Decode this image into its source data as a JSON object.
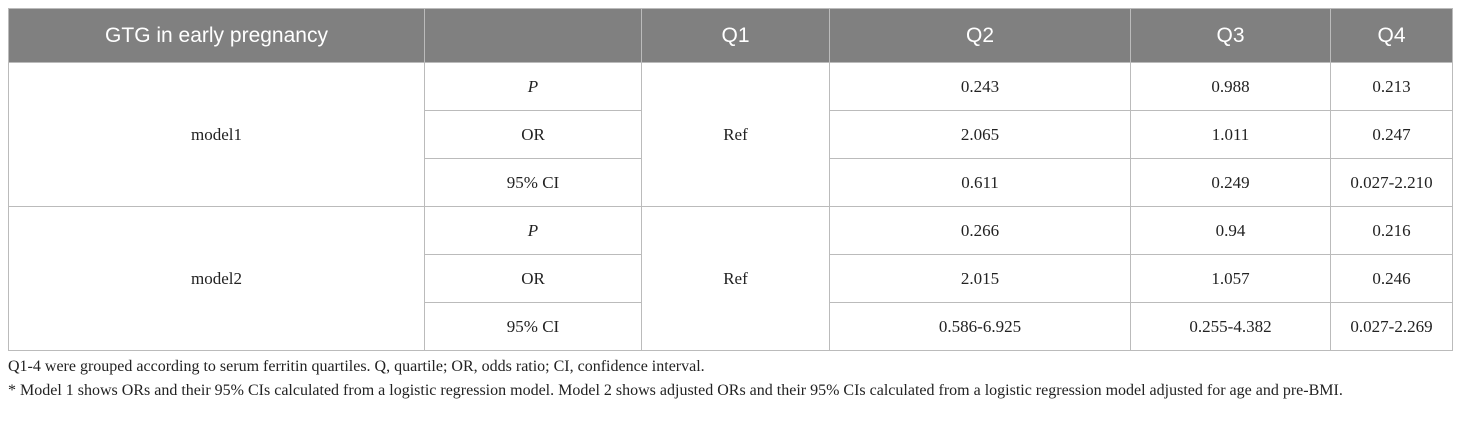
{
  "table": {
    "header": [
      "GTG in early pregnancy",
      "Q1",
      "Q2",
      "Q3",
      "Q4"
    ],
    "groups": [
      {
        "model": "model1",
        "q1": "Ref",
        "rows": [
          {
            "stat": "P",
            "values": [
              "0.243",
              "0.988",
              "0.213"
            ]
          },
          {
            "stat": "OR",
            "values": [
              "2.065",
              "1.011",
              "0.247"
            ]
          },
          {
            "stat": "95% CI",
            "values": [
              "0.611",
              "0.249",
              "0.027-2.210"
            ]
          }
        ]
      },
      {
        "model": "model2",
        "q1": "Ref",
        "rows": [
          {
            "stat": "P",
            "values": [
              "0.266",
              "0.94",
              "0.216"
            ]
          },
          {
            "stat": "OR",
            "values": [
              "2.015",
              "1.057",
              "0.246"
            ]
          },
          {
            "stat": "95% CI",
            "values": [
              "0.586-6.925",
              "0.255-4.382",
              "0.027-2.269"
            ]
          }
        ]
      }
    ]
  },
  "footnotes": [
    "Q1-4 were grouped according to serum ferritin quartiles. Q, quartile; OR, odds ratio; CI, confidence interval.",
    "* Model 1 shows ORs and their 95% CIs calculated from a logistic regression model. Model 2 shows adjusted ORs and their 95% CIs calculated from a logistic regression model adjusted for age and pre-BMI."
  ]
}
